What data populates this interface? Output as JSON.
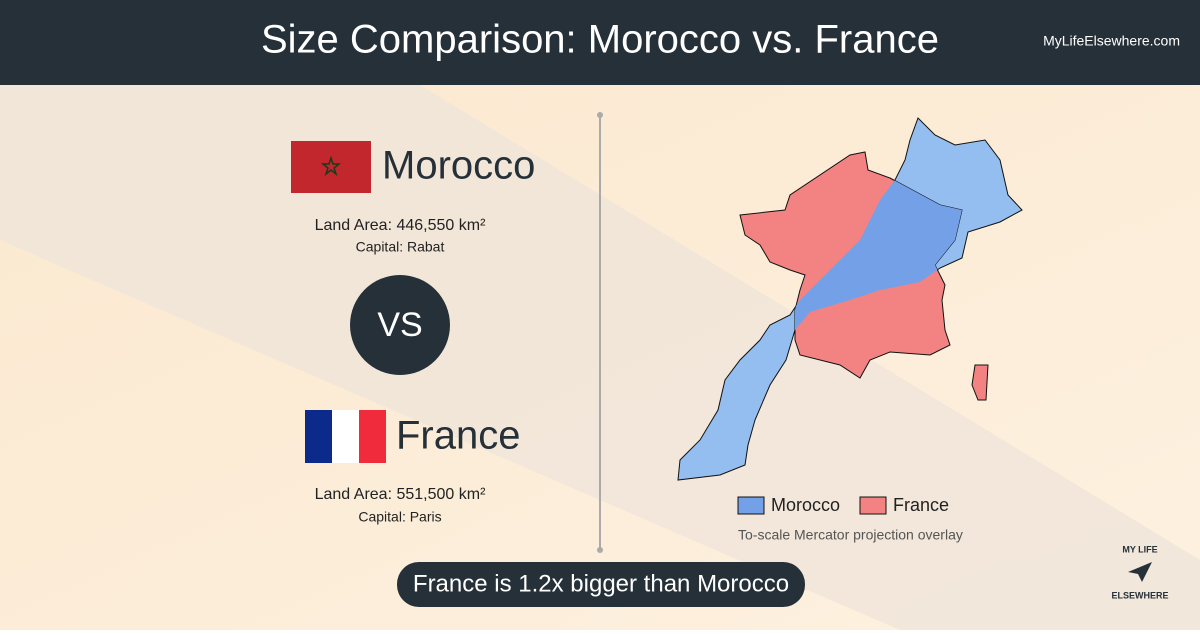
{
  "header": {
    "title": "Size Comparison: Morocco vs. France",
    "site": "MyLifeElsewhere.com"
  },
  "countries": [
    {
      "name": "Morocco",
      "land_area": "Land Area: 446,550 km²",
      "capital": "Capital: Rabat"
    },
    {
      "name": "France",
      "land_area": "Land Area: 551,500 km²",
      "capital": "Capital: Paris"
    }
  ],
  "vs": "VS",
  "legend": [
    "Morocco",
    "France"
  ],
  "caption": "To-scale Mercator projection overlay",
  "summary": "France is 1.2x bigger than Morocco",
  "logo": [
    "MY LIFE",
    "ELSEWHERE"
  ]
}
